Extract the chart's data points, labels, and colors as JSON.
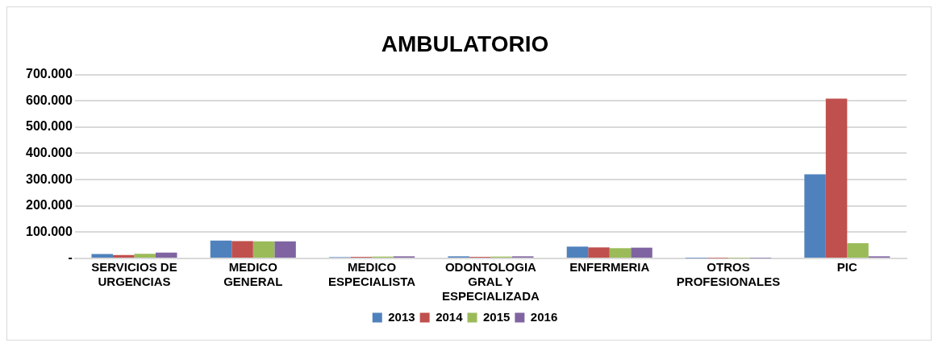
{
  "chart_data": {
    "type": "bar",
    "title": "AMBULATORIO",
    "categories": [
      "SERVICIOS DE URGENCIAS",
      "MEDICO GENERAL",
      "MEDICO ESPECIALISTA",
      "ODONTOLOGIA GRAL Y ESPECIALIZADA",
      "ENFERMERIA",
      "OTROS PROFESIONALES",
      "PIC"
    ],
    "series": [
      {
        "name": "2013",
        "color": "#4f81bd",
        "values": [
          17000,
          68000,
          5000,
          8000,
          45000,
          1000,
          320000
        ]
      },
      {
        "name": "2014",
        "color": "#c0504d",
        "values": [
          13000,
          66000,
          6000,
          6000,
          42000,
          1000,
          608000
        ]
      },
      {
        "name": "2015",
        "color": "#9bbb59",
        "values": [
          18000,
          65000,
          7000,
          7000,
          39000,
          1000,
          58000
        ]
      },
      {
        "name": "2016",
        "color": "#8064a2",
        "values": [
          22000,
          65000,
          8000,
          8000,
          41000,
          1000,
          8000
        ]
      }
    ],
    "ylim": [
      0,
      700000
    ],
    "yticks": [
      {
        "value": 0,
        "label": "-"
      },
      {
        "value": 100000,
        "label": "100.000"
      },
      {
        "value": 200000,
        "label": "200.000"
      },
      {
        "value": 300000,
        "label": "300.000"
      },
      {
        "value": 400000,
        "label": "400.000"
      },
      {
        "value": 500000,
        "label": "500.000"
      },
      {
        "value": 600000,
        "label": "600.000"
      },
      {
        "value": 700000,
        "label": "700.000"
      }
    ],
    "grid": "y",
    "legend": "bottom"
  }
}
